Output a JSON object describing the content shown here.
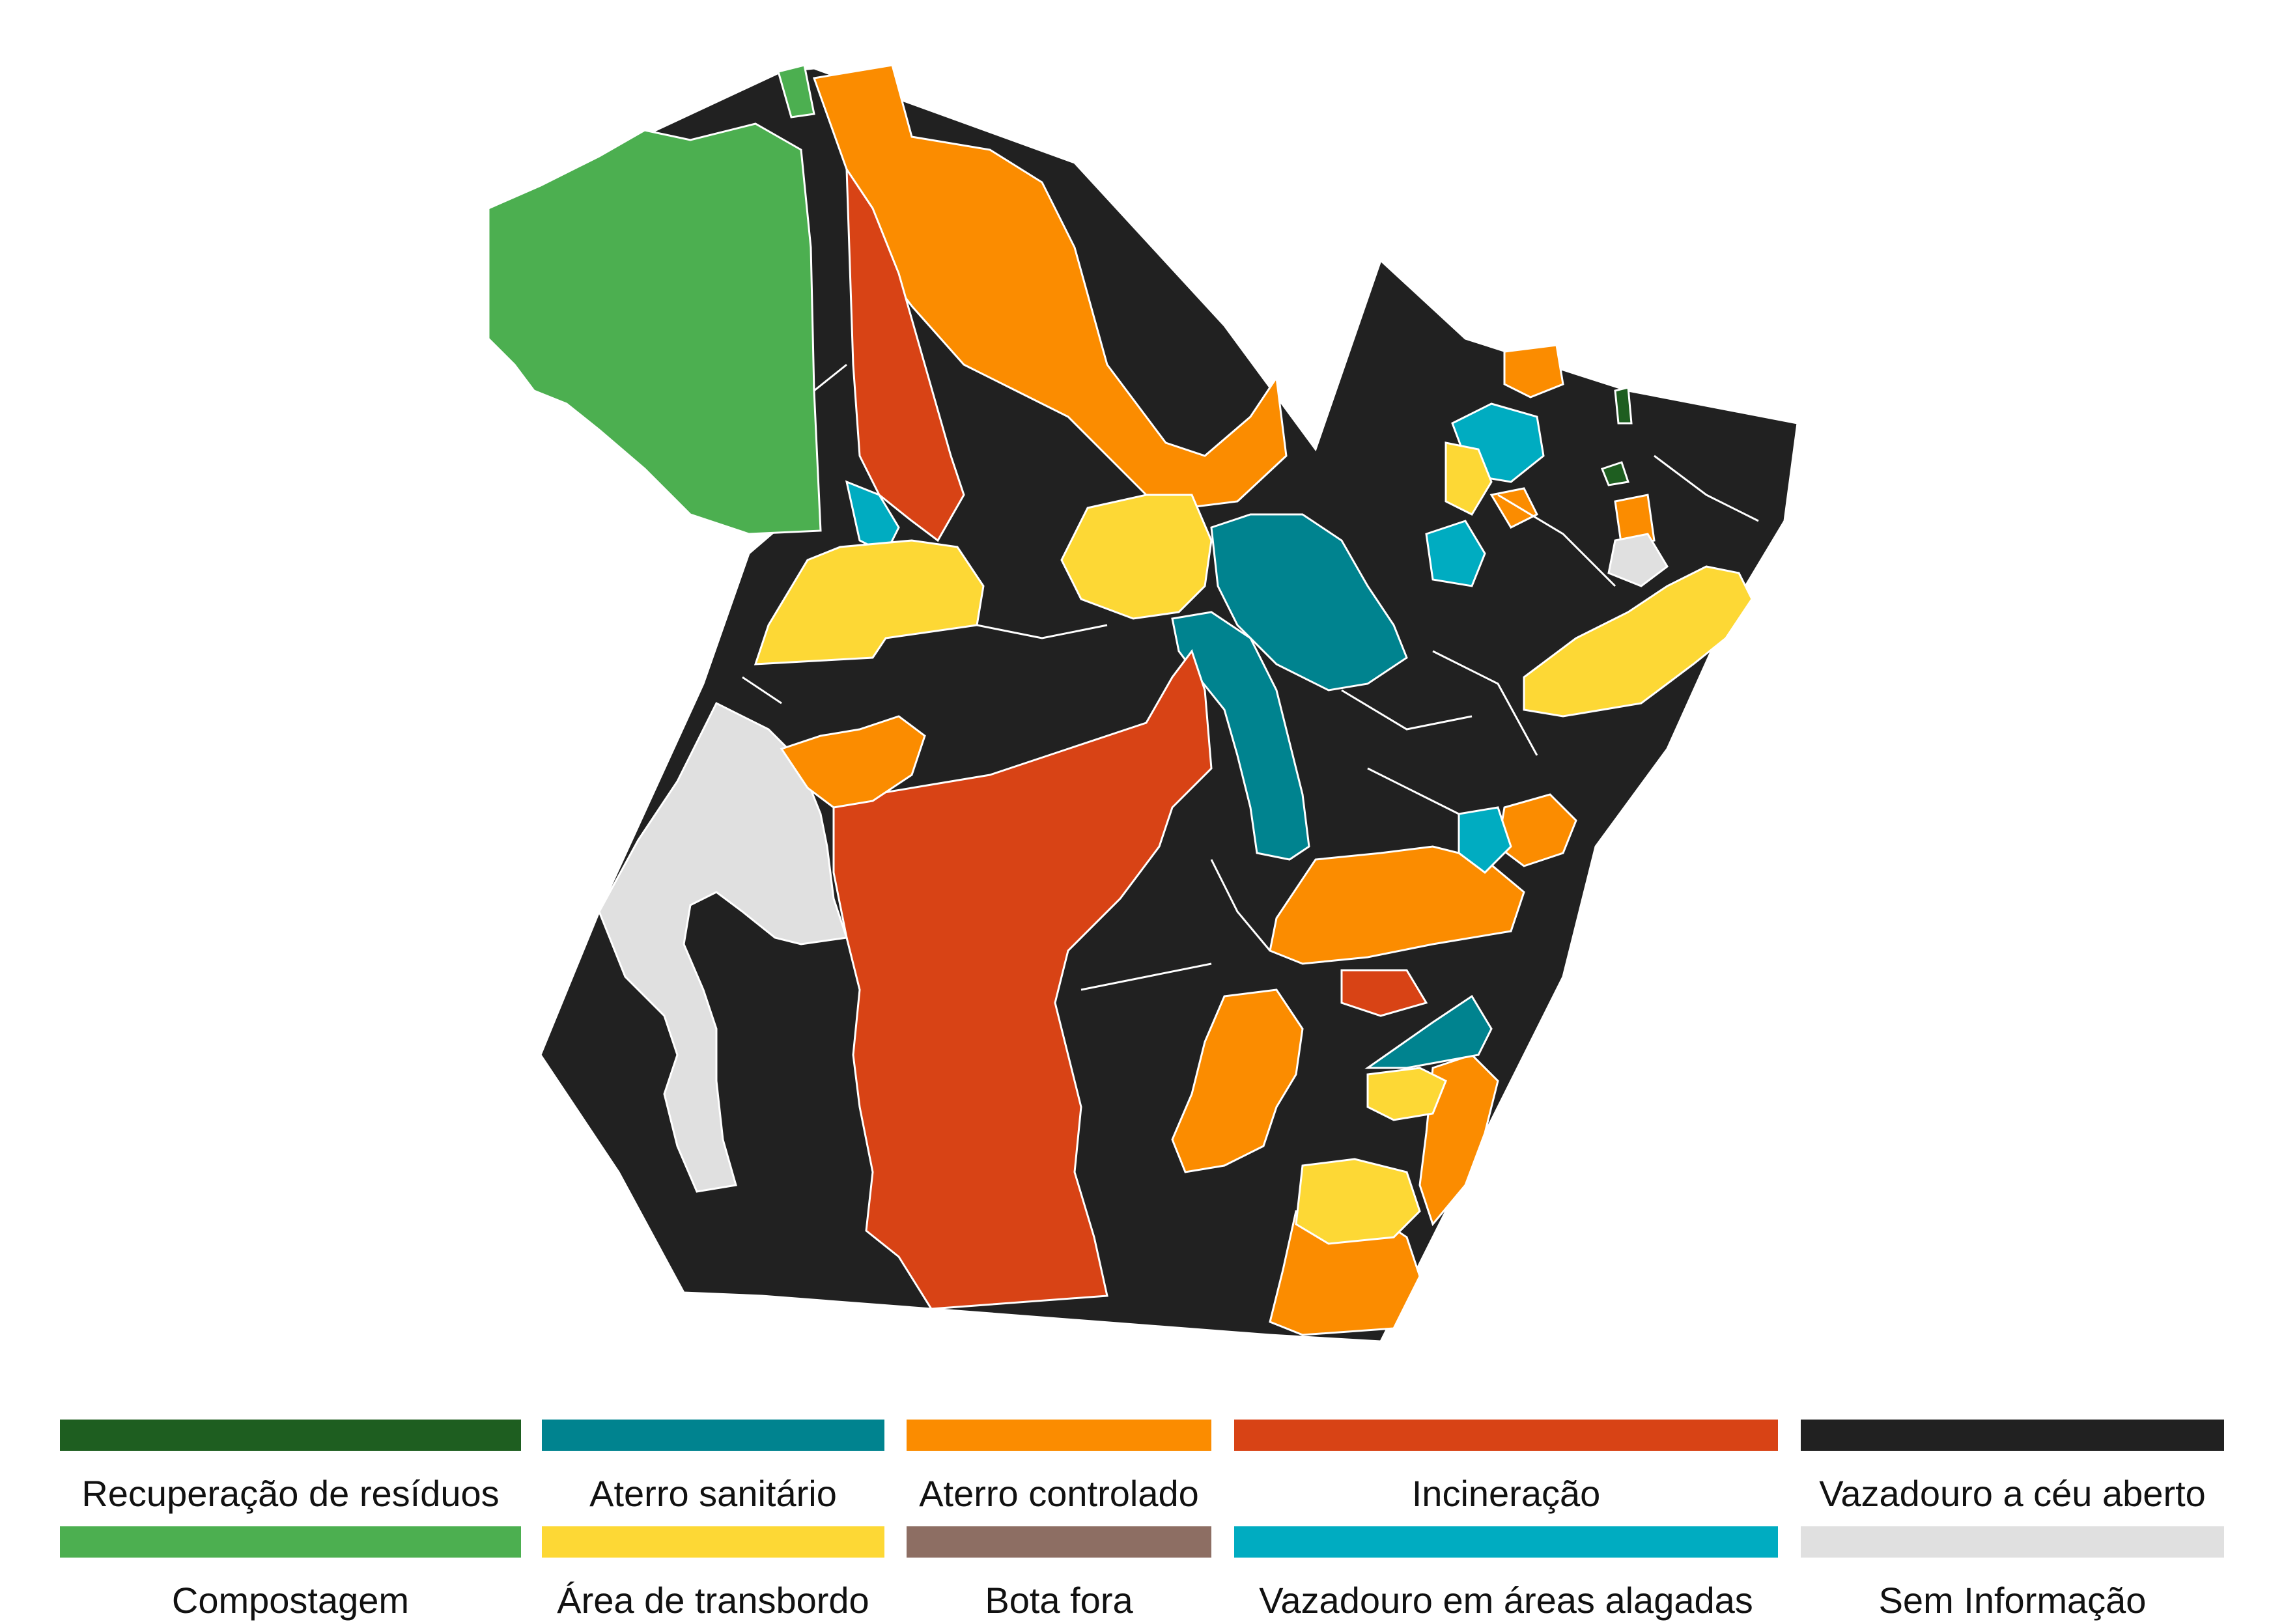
{
  "colors": {
    "recuperacao": "#1e5e20",
    "compostagem": "#4caf50",
    "aterro_sanitario": "#00838f",
    "transbordo": "#fdd835",
    "aterro_controlado": "#fb8c00",
    "bota_fora": "#8d6e63",
    "incineracao": "#d84315",
    "vazadouro_alagadas": "#00acc1",
    "vazadouro_ceu_aberto": "#212121",
    "sem_informacao": "#e0e0e0",
    "border": "#ffffff"
  },
  "legend": [
    {
      "key": "recuperacao",
      "label": "Recuperação de resíduos"
    },
    {
      "key": "aterro_sanitario",
      "label": "Aterro sanitário"
    },
    {
      "key": "aterro_controlado",
      "label": "Aterro controlado"
    },
    {
      "key": "incineracao",
      "label": "Incineração"
    },
    {
      "key": "vazadouro_ceu_aberto",
      "label": "Vazadouro a céu aberto"
    },
    {
      "key": "compostagem",
      "label": "Compostagem"
    },
    {
      "key": "transbordo",
      "label": "Área de transbordo"
    },
    {
      "key": "bota_fora",
      "label": "Bota fora"
    },
    {
      "key": "vazadouro_alagadas",
      "label": "Vazadouro em áreas alagadas"
    },
    {
      "key": "sem_informacao",
      "label": "Sem Informação"
    }
  ]
}
